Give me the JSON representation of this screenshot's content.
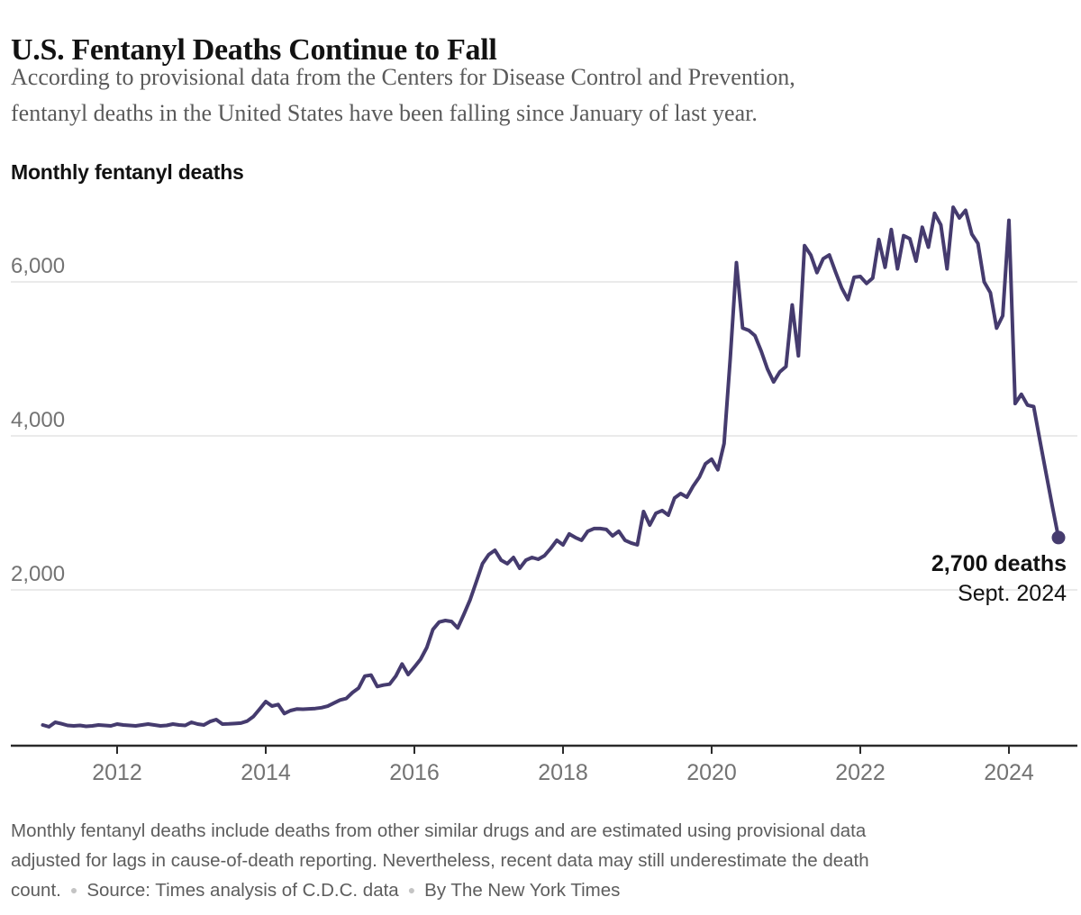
{
  "header": {
    "title": "U.S. Fentanyl Deaths Continue to Fall",
    "subtitle_lines": [
      "According to provisional data from the Centers for Disease Control and Prevention,",
      "fentanyl deaths in the United States have been falling since January of last year."
    ]
  },
  "chart": {
    "kicker": "Monthly fentanyl deaths",
    "annotation": {
      "value_label": "2,700 deaths",
      "date_label": "Sept. 2024"
    }
  },
  "chart_data": {
    "type": "line",
    "title": "Monthly fentanyl deaths",
    "x_start": "2011-01",
    "x_end": "2024-09",
    "frequency": "monthly",
    "ylim": [
      0,
      7300
    ],
    "grid": true,
    "line_color": "#453b6e",
    "grid_color": "#e3e3e3",
    "axis_color": "#2a2a2a",
    "axis_label_color": "#737373",
    "yticks": [
      {
        "value": 2000,
        "label": "2,000"
      },
      {
        "value": 4000,
        "label": "4,000"
      },
      {
        "value": 6000,
        "label": "6,000"
      }
    ],
    "xticks": [
      {
        "year": 2012,
        "label": "2012"
      },
      {
        "year": 2014,
        "label": "2014"
      },
      {
        "year": 2016,
        "label": "2016"
      },
      {
        "year": 2018,
        "label": "2018"
      },
      {
        "year": 2020,
        "label": "2020"
      },
      {
        "year": 2022,
        "label": "2022"
      },
      {
        "year": 2024,
        "label": "2024"
      }
    ],
    "annotation": {
      "x": "2024-09",
      "value": 2700,
      "label": "2,700 deaths",
      "date": "Sept. 2024"
    },
    "values": [
      246,
      222,
      281,
      262,
      240,
      234,
      240,
      228,
      234,
      246,
      240,
      234,
      257,
      246,
      240,
      234,
      246,
      257,
      246,
      234,
      240,
      257,
      246,
      240,
      281,
      257,
      246,
      290,
      316,
      257,
      260,
      264,
      270,
      296,
      355,
      450,
      550,
      491,
      511,
      394,
      433,
      453,
      450,
      455,
      460,
      470,
      490,
      530,
      570,
      589,
      667,
      725,
      881,
      893,
      745,
      764,
      776,
      881,
      1038,
      900,
      998,
      1100,
      1252,
      1486,
      1583,
      1602,
      1590,
      1505,
      1684,
      1872,
      2106,
      2340,
      2457,
      2515,
      2386,
      2340,
      2421,
      2281,
      2386,
      2421,
      2398,
      2445,
      2538,
      2644,
      2585,
      2726,
      2680,
      2644,
      2761,
      2796,
      2796,
      2785,
      2702,
      2761,
      2644,
      2609,
      2585,
      3018,
      2842,
      2995,
      3030,
      2971,
      3193,
      3252,
      3205,
      3346,
      3463,
      3638,
      3697,
      3560,
      3900,
      5000,
      6250,
      5400,
      5370,
      5300,
      5100,
      4870,
      4700,
      4830,
      4900,
      5700,
      5040,
      6470,
      6350,
      6120,
      6300,
      6350,
      6130,
      5920,
      5770,
      6060,
      6070,
      5980,
      6050,
      6550,
      6190,
      6680,
      6170,
      6600,
      6560,
      6270,
      6710,
      6450,
      6890,
      6740,
      6170,
      6970,
      6830,
      6930,
      6620,
      6500,
      6000,
      5860,
      5400,
      5560,
      6800,
      4420,
      4540,
      4400,
      4380,
      3940,
      3510,
      3090,
      2680
    ]
  },
  "footer": {
    "note_lines": [
      "Monthly fentanyl deaths include deaths from other similar drugs and are estimated using provisional data",
      "adjusted for lags in cause-of-death reporting. Nevertheless, recent data may still underestimate the death"
    ],
    "count_text": "count.",
    "separator": "●",
    "source": "Source: Times analysis of C.D.C. data",
    "byline": "By The New York Times"
  }
}
